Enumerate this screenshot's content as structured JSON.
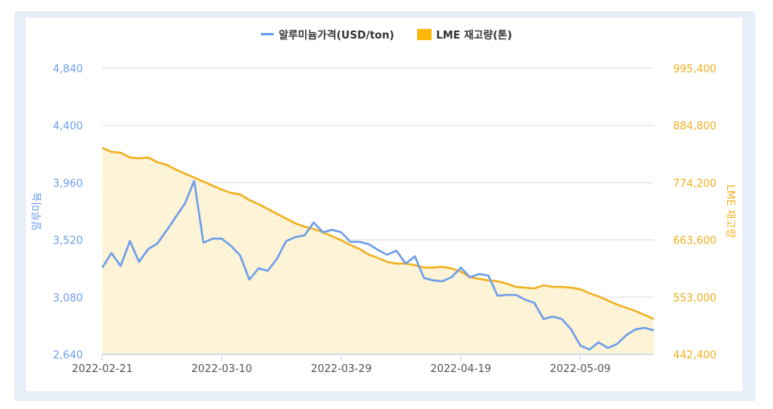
{
  "chart_data": {
    "type": "line",
    "legend_position": "top",
    "grid": true,
    "x_tick_labels": [
      "2022-02-21",
      "2022-03-10",
      "2022-03-29",
      "2022-04-19",
      "2022-05-09"
    ],
    "x_tick_index": [
      0,
      13,
      26,
      39,
      52
    ],
    "y_left": {
      "label": "알루미늄",
      "ticks": [
        "4,840",
        "4,400",
        "3,960",
        "3,520",
        "3,080",
        "2,640"
      ],
      "range": [
        2640,
        4840
      ],
      "color": "#6d9eeb"
    },
    "y_right": {
      "label": "LME 재고량",
      "ticks": [
        "995,400",
        "884,800",
        "774,200",
        "663,600",
        "553,000",
        "442,400"
      ],
      "range": [
        442400,
        995400
      ],
      "color": "#f0b020"
    },
    "series": [
      {
        "name": "알루미늄가격(USD/ton)",
        "axis": "left",
        "type": "line",
        "color": "#6d9eeb",
        "values": [
          3307,
          3419,
          3320,
          3511,
          3351,
          3450,
          3493,
          3592,
          3697,
          3802,
          3975,
          3499,
          3530,
          3530,
          3474,
          3400,
          3215,
          3301,
          3283,
          3375,
          3511,
          3542,
          3555,
          3654,
          3579,
          3598,
          3579,
          3505,
          3505,
          3487,
          3443,
          3406,
          3437,
          3338,
          3394,
          3227,
          3209,
          3202,
          3233,
          3307,
          3233,
          3258,
          3246,
          3091,
          3097,
          3097,
          3060,
          3036,
          2912,
          2930,
          2912,
          2832,
          2708,
          2677,
          2733,
          2689,
          2720,
          2788,
          2832,
          2844,
          2825
        ]
      },
      {
        "name": "LME 재고량(톤)",
        "axis": "right",
        "type": "area",
        "color": "#f0b020",
        "fill": "#fdf3d6",
        "values": [
          841600,
          833900,
          832300,
          823000,
          821400,
          823000,
          813700,
          809000,
          799700,
          791900,
          784100,
          776400,
          768600,
          760800,
          754600,
          751500,
          740700,
          732900,
          723600,
          714200,
          704900,
          695600,
          689400,
          684700,
          678500,
          670800,
          663000,
          653700,
          645900,
          635000,
          628800,
          621000,
          617900,
          617900,
          614800,
          610200,
          610200,
          611700,
          608600,
          602400,
          591500,
          588400,
          585300,
          583800,
          579100,
          572900,
          571300,
          569800,
          576000,
          572900,
          572900,
          571300,
          568200,
          560500,
          554200,
          546500,
          538700,
          532500,
          526300,
          518500,
          510800
        ]
      }
    ]
  }
}
